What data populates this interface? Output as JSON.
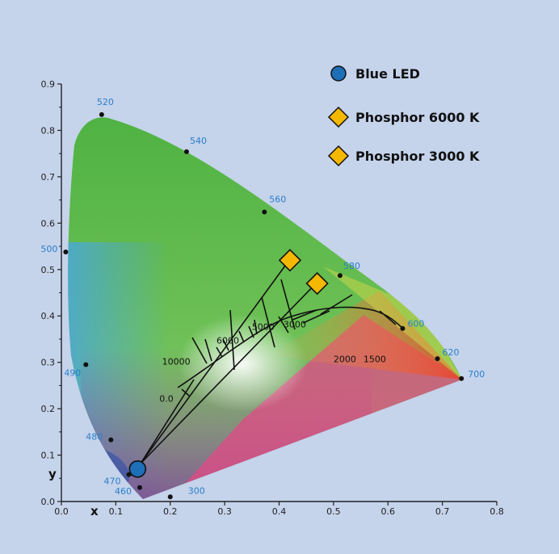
{
  "chart_data": {
    "type": "scatter",
    "title": "",
    "xlabel": "x",
    "ylabel": "y",
    "xlim": [
      0.0,
      0.8
    ],
    "ylim": [
      0.0,
      0.9
    ],
    "x_ticks": [
      "0.0",
      "0.1",
      "0.2",
      "0.3",
      "0.4",
      "0.5",
      "0.6",
      "0.7",
      "0.8"
    ],
    "y_ticks": [
      "0.0",
      "0.1",
      "0.2",
      "0.3",
      "0.4",
      "0.5",
      "0.6",
      "0.7",
      "0.8",
      "0.9"
    ],
    "locus_points": [
      {
        "label": "520",
        "x": 0.074,
        "y": 0.834
      },
      {
        "label": "540",
        "x": 0.23,
        "y": 0.754
      },
      {
        "label": "560",
        "x": 0.373,
        "y": 0.624
      },
      {
        "label": "580",
        "x": 0.512,
        "y": 0.487
      },
      {
        "label": "600",
        "x": 0.627,
        "y": 0.373
      },
      {
        "label": "620",
        "x": 0.691,
        "y": 0.308
      },
      {
        "label": "700",
        "x": 0.735,
        "y": 0.265
      },
      {
        "label": "500",
        "x": 0.008,
        "y": 0.538
      },
      {
        "label": "490",
        "x": 0.045,
        "y": 0.295
      },
      {
        "label": "480",
        "x": 0.091,
        "y": 0.133
      },
      {
        "label": "470",
        "x": 0.124,
        "y": 0.058
      },
      {
        "label": "460",
        "x": 0.144,
        "y": 0.03
      },
      {
        "label": "300",
        "x": 0.2,
        "y": 0.01
      }
    ],
    "cct_labels": [
      {
        "label": "10000",
        "x": 0.185,
        "y": 0.295
      },
      {
        "label": "6000",
        "x": 0.285,
        "y": 0.34
      },
      {
        "label": "5000",
        "x": 0.35,
        "y": 0.37
      },
      {
        "label": "3000",
        "x": 0.408,
        "y": 0.375
      },
      {
        "label": "2000",
        "x": 0.5,
        "y": 0.3
      },
      {
        "label": "1500",
        "x": 0.555,
        "y": 0.3
      },
      {
        "label": "0.0",
        "x": 0.18,
        "y": 0.215
      }
    ],
    "series": [
      {
        "name": "Blue LED",
        "marker": "circle",
        "color": "#1d6fb8",
        "points": [
          {
            "x": 0.14,
            "y": 0.07
          }
        ]
      },
      {
        "name": "Phosphor 6000 K",
        "marker": "diamond",
        "color": "#f5b800",
        "points": [
          {
            "x": 0.42,
            "y": 0.52
          }
        ]
      },
      {
        "name": "Phosphor 3000 K",
        "marker": "diamond",
        "color": "#f5b800",
        "points": [
          {
            "x": 0.47,
            "y": 0.47
          }
        ]
      }
    ],
    "legend_position": "top-right",
    "grid": false,
    "colors": {
      "background": "#c5d3eb",
      "wavelength_label": "#2a7fc9",
      "diamond": "#f5b800",
      "circle": "#1d6fb8"
    }
  }
}
